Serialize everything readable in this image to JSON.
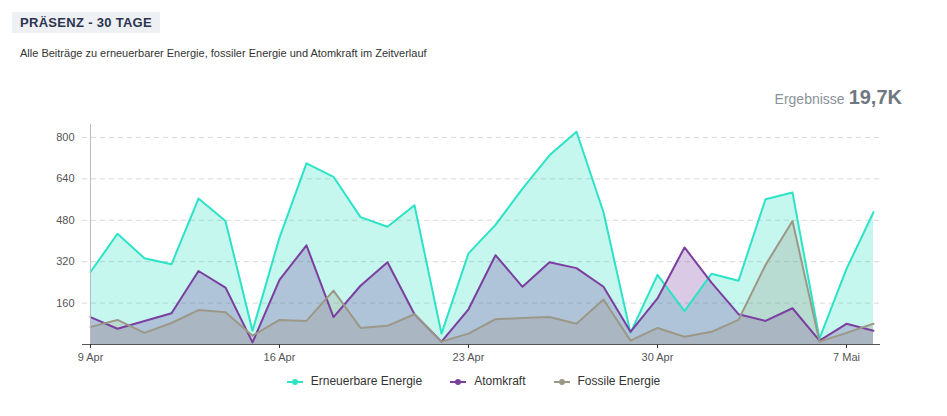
{
  "chart_data": {
    "type": "area",
    "title": "PRÄSENZ - 30 TAGE",
    "subtitle": "Alle Beiträge zu erneuerbarer Energie, fossiler Energie und Atomkraft im Zeitverlauf",
    "results_label": "Ergebnisse",
    "results_value": "19,7K",
    "categories": [
      "9 Apr",
      null,
      null,
      null,
      null,
      null,
      null,
      "16 Apr",
      null,
      null,
      null,
      null,
      null,
      null,
      "23 Apr",
      null,
      null,
      null,
      null,
      null,
      null,
      "30 Apr",
      null,
      null,
      null,
      null,
      null,
      null,
      "7 Mai",
      null
    ],
    "series": [
      {
        "name": "Erneuerbare Energie",
        "color": "#2de3c6",
        "values": [
          280,
          428,
          333,
          310,
          564,
          477,
          53,
          413,
          700,
          648,
          492,
          455,
          538,
          42,
          352,
          462,
          602,
          731,
          822,
          511,
          45,
          269,
          129,
          273,
          246,
          561,
          587,
          23,
          292,
          511
        ]
      },
      {
        "name": "Atomkraft",
        "color": "#7b3fa0",
        "values": [
          106,
          61,
          91,
          121,
          284,
          220,
          8,
          250,
          383,
          106,
          227,
          318,
          117,
          11,
          136,
          345,
          223,
          318,
          295,
          223,
          49,
          178,
          375,
          239,
          117,
          91,
          140,
          15,
          80,
          53
        ]
      },
      {
        "name": "Fossile Energie",
        "color": "#9c9888",
        "values": [
          68,
          95,
          45,
          83,
          133,
          125,
          34,
          95,
          91,
          208,
          64,
          72,
          117,
          11,
          42,
          98,
          102,
          106,
          80,
          174,
          15,
          64,
          30,
          49,
          95,
          307,
          477,
          11,
          45,
          80
        ]
      }
    ],
    "ylim": [
      0,
      850
    ],
    "yticks": [
      160,
      320,
      480,
      640,
      800
    ],
    "grid": true,
    "legend": "bottom"
  }
}
